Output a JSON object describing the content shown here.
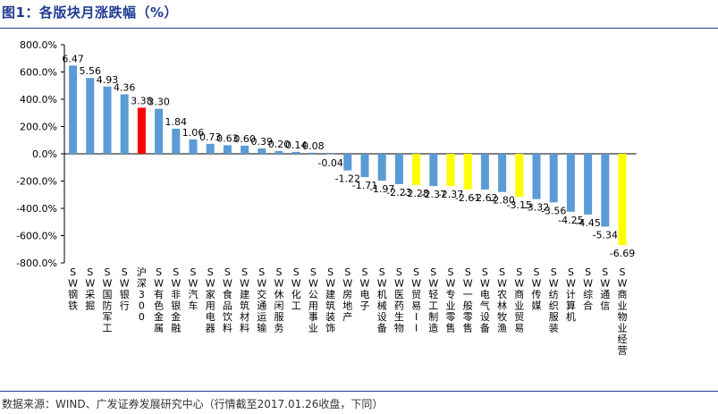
{
  "figure": {
    "title": "图1：各版块月涨跌幅（%）",
    "source": "数据来源：WIND、广发证券发展研究中心（行情截至2017.01.26收盘，下同）"
  },
  "chart_data": {
    "type": "bar",
    "title": "图1：各版块月涨跌幅（%）",
    "xlabel": "",
    "ylabel": "",
    "ylim": [
      -800,
      800
    ],
    "yticks": [
      800,
      600,
      400,
      200,
      0,
      -200,
      -400,
      -600,
      -800
    ],
    "ytick_labels": [
      "800.0%",
      "600.0%",
      "400.0%",
      "200.0%",
      "0.0%",
      "-200.0%",
      "-400.0%",
      "-600.0%",
      "-800.0%"
    ],
    "grid": false,
    "legend": "none",
    "categories": [
      "SW钢铁",
      "SW采掘",
      "SW国防军工",
      "SW银行",
      "沪深300",
      "SW有色金属",
      "SW非银金融",
      "SW汽车",
      "SW家用电器",
      "SW食品饮料",
      "SW建筑材料",
      "SW交通运输",
      "SW休闲服务",
      "SW化工",
      "SW公用事业",
      "SW建筑装饰",
      "SW房地产",
      "SW电子",
      "SW机械设备",
      "SW医药生物",
      "SW贸易II",
      "SW轻工制造",
      "SW专业零售",
      "SW一般零售",
      "SW电气设备",
      "SW农林牧渔",
      "SW商业贸易",
      "SW传媒",
      "SW纺织服装",
      "SW计算机",
      "SW综合",
      "SW通信",
      "SW商业物业经营"
    ],
    "values": [
      6.47,
      5.56,
      4.93,
      4.36,
      3.38,
      3.3,
      1.84,
      1.06,
      0.73,
      0.63,
      0.6,
      0.39,
      0.2,
      0.14,
      0.08,
      -0.04,
      -1.22,
      -1.71,
      -1.97,
      -2.23,
      -2.28,
      -2.37,
      -2.37,
      -2.61,
      -2.62,
      -2.8,
      -3.15,
      -3.32,
      -3.56,
      -4.25,
      -4.45,
      -5.34,
      -6.69
    ],
    "data_labels": [
      "6.47",
      "5.56",
      "4.93",
      "4.36",
      "3.38",
      "3.30",
      "1.84",
      "1.06",
      "0.73",
      "0.63",
      "0.60",
      "0.39",
      "0.20",
      "0.14",
      "0.08",
      "-0.04",
      "-1.22",
      "-1.71",
      "-1.97",
      "-2.23",
      "-2.28",
      "-2.37",
      "-2.37",
      "-2.61",
      "-2.62",
      "-2.80",
      "-3.15",
      "-3.32",
      "-3.56",
      "-4.25",
      "-4.45",
      "-5.34",
      "-6.69"
    ],
    "bar_colors": [
      "#5b9bd5",
      "#5b9bd5",
      "#5b9bd5",
      "#5b9bd5",
      "#ff0000",
      "#5b9bd5",
      "#5b9bd5",
      "#5b9bd5",
      "#5b9bd5",
      "#5b9bd5",
      "#5b9bd5",
      "#5b9bd5",
      "#5b9bd5",
      "#5b9bd5",
      "#5b9bd5",
      "#5b9bd5",
      "#5b9bd5",
      "#5b9bd5",
      "#5b9bd5",
      "#5b9bd5",
      "#ffff00",
      "#5b9bd5",
      "#ffff00",
      "#ffff00",
      "#5b9bd5",
      "#5b9bd5",
      "#ffff00",
      "#5b9bd5",
      "#5b9bd5",
      "#5b9bd5",
      "#5b9bd5",
      "#5b9bd5",
      "#ffff00"
    ]
  },
  "colors": {
    "default_bar": "#5b9bd5",
    "index_bar": "#ff0000",
    "highlight_bar": "#ffff00",
    "title": "#1f3a93"
  }
}
